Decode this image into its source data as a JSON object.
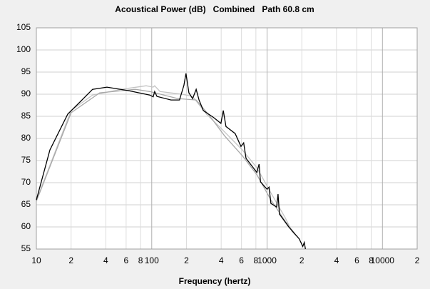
{
  "chart_data": {
    "type": "line",
    "title": "Acoustical Power (dB)   Combined   Path 60.8 cm",
    "x_label": "Frequency (hertz)",
    "xscale": "log",
    "grid": true,
    "xlim": [
      10,
      20000
    ],
    "ylim": [
      55,
      105
    ],
    "xticks": [
      10,
      {
        "value": 20,
        "label": "2"
      },
      {
        "value": 40,
        "label": "4"
      },
      {
        "value": 60,
        "label": "6"
      },
      {
        "value": 80,
        "label": "8"
      },
      100,
      {
        "value": 200,
        "label": "2"
      },
      {
        "value": 400,
        "label": "4"
      },
      {
        "value": 600,
        "label": "6"
      },
      {
        "value": 800,
        "label": "8"
      },
      1000,
      {
        "value": 2000,
        "label": "2"
      },
      {
        "value": 4000,
        "label": "4"
      },
      {
        "value": 6000,
        "label": "6"
      },
      {
        "value": 8000,
        "label": "8"
      },
      10000,
      {
        "value": 20000,
        "label": "2"
      }
    ],
    "yticks": [
      55,
      60,
      65,
      70,
      75,
      80,
      85,
      90,
      95,
      100,
      105
    ],
    "series": [
      {
        "color": "#c4c4c4",
        "x": [
          10,
          20,
          30.7,
          54.3,
          89.5,
          103,
          106,
          118,
          182,
          226,
          298,
          398,
          610,
          815,
          1080,
          1435,
          1650,
          1900
        ],
        "values": [
          66,
          86.3,
          89.8,
          91.1,
          91.9,
          91.6,
          91.9,
          90.6,
          90,
          89.5,
          85.5,
          82.3,
          77.4,
          73.4,
          67.7,
          62.1,
          58.9,
          57.3
        ]
      },
      {
        "color": "#a8a8a8",
        "x": [
          10,
          20,
          35.4,
          72.2,
          96.2,
          169,
          243,
          320,
          428,
          610,
          815,
          1080,
          1435,
          1780
        ],
        "values": [
          65.8,
          85.8,
          90.3,
          91.1,
          90.6,
          89,
          88.7,
          85,
          80.6,
          76.1,
          71.8,
          66.1,
          61.3,
          58.1
        ]
      },
      {
        "color": "#000000",
        "x": [
          10,
          13.1,
          18.7,
          23.2,
          30.7,
          40.9,
          62.7,
          96.2,
          103,
          106,
          111,
          147,
          174,
          190,
          198,
          210,
          226,
          243,
          257,
          280,
          345,
          398,
          417,
          440,
          529,
          594,
          627,
          657,
          815,
          852,
          877,
          1000,
          1040,
          1080,
          1209,
          1245,
          1281,
          1540,
          1900,
          2040,
          2100,
          2150
        ],
        "values": [
          66.1,
          77.4,
          85.5,
          87.9,
          91.1,
          91.6,
          90.8,
          89.8,
          89.4,
          90.6,
          89.5,
          88.7,
          88.7,
          92,
          94.7,
          90.3,
          89,
          91.1,
          88.7,
          86.3,
          84.7,
          83.4,
          86.3,
          82.7,
          81.1,
          78.2,
          79,
          75.5,
          72.3,
          74.2,
          70.2,
          68.5,
          69,
          65.3,
          64.5,
          67.4,
          62.9,
          60,
          57.3,
          55.6,
          56.5,
          55
        ]
      }
    ]
  }
}
